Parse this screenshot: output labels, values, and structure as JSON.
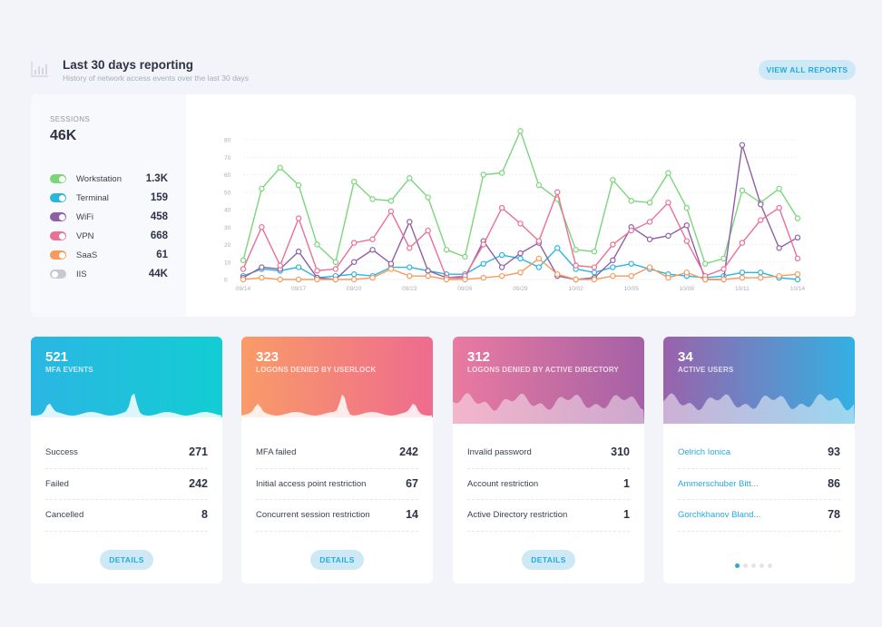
{
  "header": {
    "title": "Last 30 days reporting",
    "subtitle": "History of network access events over the last 30 days",
    "view_all_label": "VIEW ALL REPORTS",
    "icon": "bar-chart-icon"
  },
  "sessions": {
    "label": "SESSIONS",
    "total": "46K",
    "legend": [
      {
        "name": "Workstation",
        "value": "1.3K",
        "color": "#7bd67a",
        "enabled": true
      },
      {
        "name": "Terminal",
        "value": "159",
        "color": "#2cb3e0",
        "enabled": true
      },
      {
        "name": "WiFi",
        "value": "458",
        "color": "#8e5fa8",
        "enabled": true
      },
      {
        "name": "VPN",
        "value": "668",
        "color": "#ec6f95",
        "enabled": true
      },
      {
        "name": "SaaS",
        "value": "61",
        "color": "#f79a5c",
        "enabled": true
      },
      {
        "name": "IIS",
        "value": "44K",
        "color": "#c6c9d2",
        "enabled": false
      }
    ]
  },
  "chart_data": {
    "type": "line",
    "x": [
      "09/14",
      "09/15",
      "09/16",
      "09/17",
      "09/18",
      "09/19",
      "09/20",
      "09/21",
      "09/22",
      "09/23",
      "09/24",
      "09/25",
      "09/26",
      "09/27",
      "09/28",
      "09/29",
      "09/30",
      "10/01",
      "10/02",
      "10/03",
      "10/04",
      "10/05",
      "10/06",
      "10/07",
      "10/08",
      "10/09",
      "10/10",
      "10/11",
      "10/12",
      "10/13",
      "10/14"
    ],
    "x_tick_labels": [
      "09/14",
      "09/17",
      "09/20",
      "09/23",
      "09/26",
      "09/29",
      "10/02",
      "10/05",
      "10/08",
      "10/11",
      "10/14"
    ],
    "ylim": [
      0,
      80
    ],
    "y_ticks": [
      0,
      10,
      20,
      30,
      40,
      50,
      60,
      70,
      80
    ],
    "grid": true,
    "series": [
      {
        "name": "Workstation",
        "color": "#7bd67a",
        "values": [
          11,
          52,
          64,
          54,
          20,
          10,
          56,
          46,
          45,
          58,
          47,
          17,
          13,
          60,
          61,
          85,
          54,
          46,
          17,
          16,
          57,
          45,
          44,
          61,
          41,
          9,
          12,
          51,
          44,
          52,
          35
        ]
      },
      {
        "name": "Terminal",
        "color": "#2cb3e0",
        "values": [
          2,
          6,
          5,
          7,
          1,
          2,
          3,
          2,
          7,
          7,
          5,
          3,
          3,
          9,
          14,
          12,
          7,
          18,
          6,
          4,
          7,
          9,
          6,
          3,
          2,
          1,
          2,
          4,
          4,
          1,
          0
        ]
      },
      {
        "name": "WiFi",
        "color": "#8e5fa8",
        "values": [
          1,
          7,
          6,
          16,
          1,
          0,
          10,
          17,
          9,
          33,
          5,
          1,
          1,
          22,
          7,
          15,
          21,
          2,
          0,
          1,
          11,
          30,
          23,
          25,
          31,
          0,
          0,
          77,
          43,
          18,
          24
        ]
      },
      {
        "name": "VPN",
        "color": "#ec6f95",
        "values": [
          6,
          30,
          8,
          35,
          5,
          6,
          21,
          23,
          39,
          18,
          28,
          1,
          2,
          20,
          41,
          32,
          22,
          50,
          8,
          7,
          20,
          28,
          33,
          44,
          22,
          2,
          6,
          21,
          34,
          41,
          12
        ]
      },
      {
        "name": "SaaS",
        "color": "#f79a5c",
        "values": [
          0,
          1,
          0,
          0,
          0,
          0,
          0,
          1,
          6,
          2,
          2,
          0,
          0,
          1,
          2,
          4,
          12,
          3,
          0,
          0,
          2,
          2,
          7,
          1,
          4,
          0,
          0,
          1,
          1,
          2,
          3
        ]
      }
    ]
  },
  "cards": [
    {
      "number": "521",
      "label": "MFA EVENTS",
      "rows": [
        {
          "key": "Success",
          "value": "271"
        },
        {
          "key": "Failed",
          "value": "242"
        },
        {
          "key": "Cancelled",
          "value": "8"
        }
      ],
      "details_label": "DETAILS"
    },
    {
      "number": "323",
      "label": "LOGONS DENIED BY USERLOCK",
      "rows": [
        {
          "key": "MFA failed",
          "value": "242"
        },
        {
          "key": "Initial access point restriction",
          "value": "67"
        },
        {
          "key": "Concurrent session restriction",
          "value": "14"
        }
      ],
      "details_label": "DETAILS"
    },
    {
      "number": "312",
      "label": "LOGONS DENIED BY ACTIVE DIRECTORY",
      "rows": [
        {
          "key": "Invalid password",
          "value": "310"
        },
        {
          "key": "Account restriction",
          "value": "1"
        },
        {
          "key": "Active Directory restriction",
          "value": "1"
        }
      ],
      "details_label": "DETAILS"
    },
    {
      "number": "34",
      "label": "ACTIVE USERS",
      "rows": [
        {
          "key": "Oelrich Ionica",
          "value": "93"
        },
        {
          "key": "Ammerschuber Bitt...",
          "value": "86"
        },
        {
          "key": "Gorchkhanov Bland...",
          "value": "78"
        }
      ],
      "pagination": {
        "pages": 5,
        "active": 1
      }
    }
  ]
}
